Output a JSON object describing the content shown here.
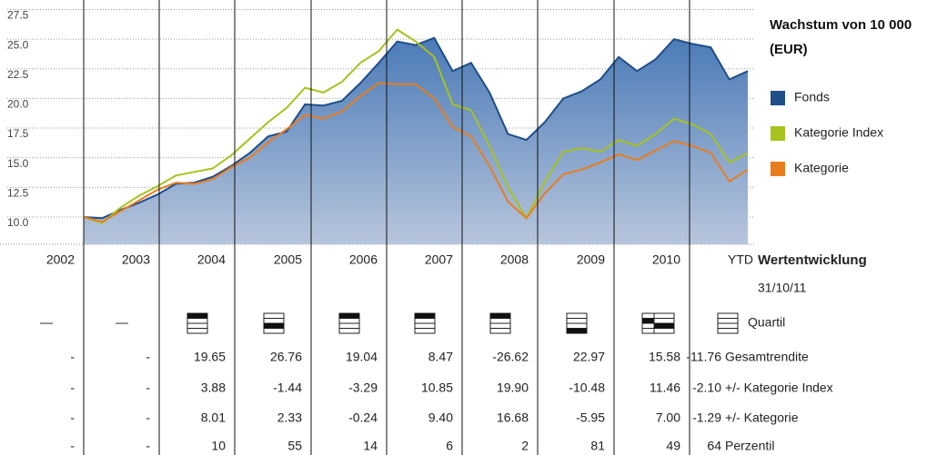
{
  "chart_data": {
    "type": "area-line",
    "title": "Wachstum von 10 000 (EUR)",
    "categories": [
      null,
      null,
      null,
      null,
      null,
      null,
      null,
      null,
      null,
      null,
      null,
      null,
      null,
      null,
      null,
      null,
      null,
      null,
      null,
      null,
      null,
      null,
      null,
      null,
      null,
      null,
      null,
      null,
      null,
      null,
      null,
      null,
      null,
      null,
      null,
      null,
      null
    ],
    "series": [
      {
        "name": "Fonds",
        "color": "#1f4e89",
        "values": [
          10.0,
          9.9,
          10.6,
          11.2,
          11.9,
          12.8,
          12.9,
          13.4,
          14.3,
          15.4,
          16.8,
          17.2,
          19.5,
          19.4,
          19.8,
          21.3,
          23.0,
          24.8,
          24.5,
          25.1,
          22.3,
          23.0,
          20.5,
          17.0,
          16.5,
          18.0,
          20.0,
          20.6,
          21.6,
          23.5,
          22.3,
          23.3,
          25.0,
          24.6,
          24.3,
          21.6,
          22.3
        ]
      },
      {
        "name": "Kategorie Index",
        "color": "#a8c21e",
        "values": [
          10.0,
          9.5,
          10.8,
          11.8,
          12.6,
          13.5,
          13.8,
          14.1,
          15.2,
          16.6,
          18.0,
          19.2,
          20.9,
          20.5,
          21.4,
          23.0,
          24.0,
          25.8,
          24.8,
          23.5,
          19.5,
          19.0,
          16.0,
          12.5,
          9.9,
          13.0,
          15.5,
          15.8,
          15.5,
          16.5,
          16.0,
          17.0,
          18.3,
          17.8,
          17.0,
          14.6,
          15.4
        ]
      },
      {
        "name": "Kategorie",
        "color": "#e87d1e",
        "values": [
          10.0,
          9.6,
          10.5,
          11.4,
          12.3,
          12.9,
          12.8,
          13.2,
          14.2,
          15.0,
          16.3,
          17.4,
          18.6,
          18.3,
          18.9,
          20.2,
          21.3,
          21.2,
          21.2,
          20.0,
          17.6,
          16.8,
          14.3,
          11.3,
          9.9,
          12.0,
          13.6,
          14.0,
          14.6,
          15.3,
          14.8,
          15.6,
          16.4,
          16.0,
          15.4,
          13.0,
          14.0
        ]
      }
    ],
    "ylim": [
      7.7,
      28.3
    ],
    "yticks": [
      27.5,
      {
        "value": 25,
        "label": "25.0"
      },
      22.5,
      {
        "value": 20,
        "label": "20.0"
      },
      17.5,
      {
        "value": 15,
        "label": "15.0"
      },
      12.5,
      {
        "value": 10,
        "label": "10.0"
      }
    ],
    "grid": true
  },
  "table": {
    "columns": [
      "2002",
      "2003",
      "2004",
      "2005",
      "2006",
      "2007",
      "2008",
      "2009",
      "2010",
      "YTD"
    ],
    "header_label": "Wertentwicklung",
    "date": "31/10/11",
    "quartile": {
      "label": "Quartil",
      "values": [
        "—",
        "—",
        1,
        3,
        1,
        1,
        1,
        4,
        2,
        3
      ]
    },
    "rows": [
      {
        "label": "Gesamtrendite",
        "values": [
          "-",
          "-",
          "19.65",
          "26.76",
          "19.04",
          "8.47",
          "-26.62",
          "22.97",
          "15.58",
          "-11.76"
        ]
      },
      {
        "label": "+/- Kategorie Index",
        "values": [
          "-",
          "-",
          "3.88",
          "-1.44",
          "-3.29",
          "10.85",
          "19.90",
          "-10.48",
          "11.46",
          "-2.10"
        ]
      },
      {
        "label": "+/- Kategorie",
        "values": [
          "-",
          "-",
          "8.01",
          "2.33",
          "-0.24",
          "9.40",
          "16.68",
          "-5.95",
          "7.00",
          "-1.29"
        ]
      },
      {
        "label": "Perzentil",
        "values": [
          "-",
          "-",
          "10",
          "55",
          "14",
          "6",
          "2",
          "81",
          "49",
          "64"
        ]
      }
    ]
  }
}
